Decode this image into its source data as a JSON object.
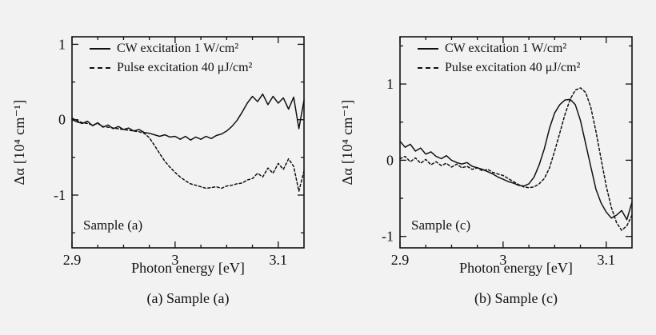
{
  "figure": {
    "background": "#f2f2f2",
    "line_color": "#111111",
    "panels": [
      {
        "id": "a",
        "sample_label": "Sample (a)",
        "caption": "(a) Sample (a)",
        "xlabel": "Photon energy [eV]",
        "ylabel": "Δα [10⁴ cm⁻¹]",
        "legend": [
          {
            "label": "CW excitation 1 W/cm²",
            "style": "solid"
          },
          {
            "label": "Pulse excitation 40 μJ/cm²",
            "style": "dashed"
          }
        ]
      },
      {
        "id": "c",
        "sample_label": "Sample (c)",
        "caption": "(b) Sample (c)",
        "xlabel": "Photon energy [eV]",
        "ylabel": "Δα [10⁴ cm⁻¹]",
        "legend": [
          {
            "label": "CW excitation 1 W/cm²",
            "style": "solid"
          },
          {
            "label": "Pulse excitation 40 μJ/cm²",
            "style": "dashed"
          }
        ]
      }
    ]
  },
  "chart_data": [
    {
      "type": "line",
      "title": "Sample (a)",
      "xlabel": "Photon energy [eV]",
      "ylabel": "Δα [10⁴ cm⁻¹]",
      "xlim": [
        2.9,
        3.125
      ],
      "ylim": [
        -1.7,
        1.1
      ],
      "grid": false,
      "legend_position": "upper-left-inside",
      "xticks": [
        {
          "v": 2.9,
          "label": "2.9"
        },
        {
          "v": 3.0,
          "label": "3"
        },
        {
          "v": 3.1,
          "label": "3.1"
        }
      ],
      "yticks": [
        {
          "v": -1,
          "label": "-1"
        },
        {
          "v": 0,
          "label": "0"
        },
        {
          "v": 1,
          "label": "1"
        }
      ],
      "minor_xticks": [
        2.925,
        2.95,
        2.975,
        3.025,
        3.05,
        3.075
      ],
      "minor_yticks": [
        -1.5,
        -0.5,
        0.5
      ],
      "series": [
        {
          "name": "CW excitation 1 W/cm²",
          "style": "solid",
          "x0": 2.9,
          "dx": 0.005,
          "y": [
            0.0,
            -0.03,
            -0.05,
            -0.02,
            -0.08,
            -0.04,
            -0.1,
            -0.07,
            -0.12,
            -0.09,
            -0.13,
            -0.11,
            -0.15,
            -0.13,
            -0.17,
            -0.18,
            -0.2,
            -0.22,
            -0.2,
            -0.23,
            -0.22,
            -0.26,
            -0.22,
            -0.27,
            -0.23,
            -0.26,
            -0.22,
            -0.25,
            -0.21,
            -0.19,
            -0.15,
            -0.09,
            -0.01,
            0.1,
            0.22,
            0.31,
            0.24,
            0.34,
            0.2,
            0.31,
            0.22,
            0.29,
            0.14,
            0.3,
            -0.12,
            0.26
          ]
        },
        {
          "name": "Pulse excitation 40 μJ/cm²",
          "style": "dashed",
          "x0": 2.9,
          "dx": 0.005,
          "y": [
            0.02,
            -0.01,
            -0.04,
            -0.05,
            -0.07,
            -0.05,
            -0.09,
            -0.1,
            -0.11,
            -0.12,
            -0.13,
            -0.14,
            -0.15,
            -0.16,
            -0.18,
            -0.24,
            -0.34,
            -0.45,
            -0.55,
            -0.63,
            -0.7,
            -0.76,
            -0.81,
            -0.85,
            -0.87,
            -0.89,
            -0.91,
            -0.9,
            -0.89,
            -0.91,
            -0.88,
            -0.87,
            -0.85,
            -0.84,
            -0.8,
            -0.78,
            -0.71,
            -0.76,
            -0.64,
            -0.71,
            -0.58,
            -0.66,
            -0.52,
            -0.62,
            -0.95,
            -0.68
          ]
        }
      ]
    },
    {
      "type": "line",
      "title": "Sample (c)",
      "xlabel": "Photon energy [eV]",
      "ylabel": "Δα [10⁴ cm⁻¹]",
      "xlim": [
        2.9,
        3.125
      ],
      "ylim": [
        -1.15,
        1.62
      ],
      "grid": false,
      "legend_position": "upper-left-inside",
      "xticks": [
        {
          "v": 2.9,
          "label": "2.9"
        },
        {
          "v": 3.0,
          "label": "3"
        },
        {
          "v": 3.1,
          "label": "3.1"
        }
      ],
      "yticks": [
        {
          "v": -1,
          "label": "-1"
        },
        {
          "v": 0,
          "label": "0"
        },
        {
          "v": 1,
          "label": "1"
        }
      ],
      "minor_xticks": [
        2.925,
        2.95,
        2.975,
        3.025,
        3.05,
        3.075
      ],
      "minor_yticks": [
        -0.5,
        0.5,
        1.5
      ],
      "series": [
        {
          "name": "CW excitation 1 W/cm²",
          "style": "solid",
          "x0": 2.9,
          "dx": 0.005,
          "y": [
            0.25,
            0.17,
            0.21,
            0.12,
            0.16,
            0.08,
            0.11,
            0.05,
            0.02,
            0.06,
            0.0,
            -0.03,
            -0.05,
            -0.03,
            -0.08,
            -0.1,
            -0.12,
            -0.15,
            -0.18,
            -0.22,
            -0.25,
            -0.28,
            -0.3,
            -0.33,
            -0.34,
            -0.31,
            -0.22,
            -0.06,
            0.15,
            0.42,
            0.62,
            0.73,
            0.79,
            0.8,
            0.73,
            0.52,
            0.22,
            -0.08,
            -0.38,
            -0.56,
            -0.68,
            -0.76,
            -0.72,
            -0.66,
            -0.78,
            -0.55
          ]
        },
        {
          "name": "Pulse excitation 40 μJ/cm²",
          "style": "dashed",
          "x0": 2.9,
          "dx": 0.005,
          "y": [
            0.02,
            0.05,
            -0.02,
            0.03,
            -0.04,
            0.01,
            -0.06,
            -0.02,
            -0.07,
            -0.04,
            -0.09,
            -0.05,
            -0.1,
            -0.08,
            -0.12,
            -0.1,
            -0.14,
            -0.12,
            -0.16,
            -0.18,
            -0.2,
            -0.24,
            -0.28,
            -0.32,
            -0.35,
            -0.36,
            -0.35,
            -0.31,
            -0.24,
            -0.1,
            0.12,
            0.36,
            0.6,
            0.8,
            0.92,
            0.95,
            0.89,
            0.7,
            0.38,
            0.02,
            -0.34,
            -0.62,
            -0.82,
            -0.92,
            -0.86,
            -0.72
          ]
        }
      ]
    }
  ]
}
